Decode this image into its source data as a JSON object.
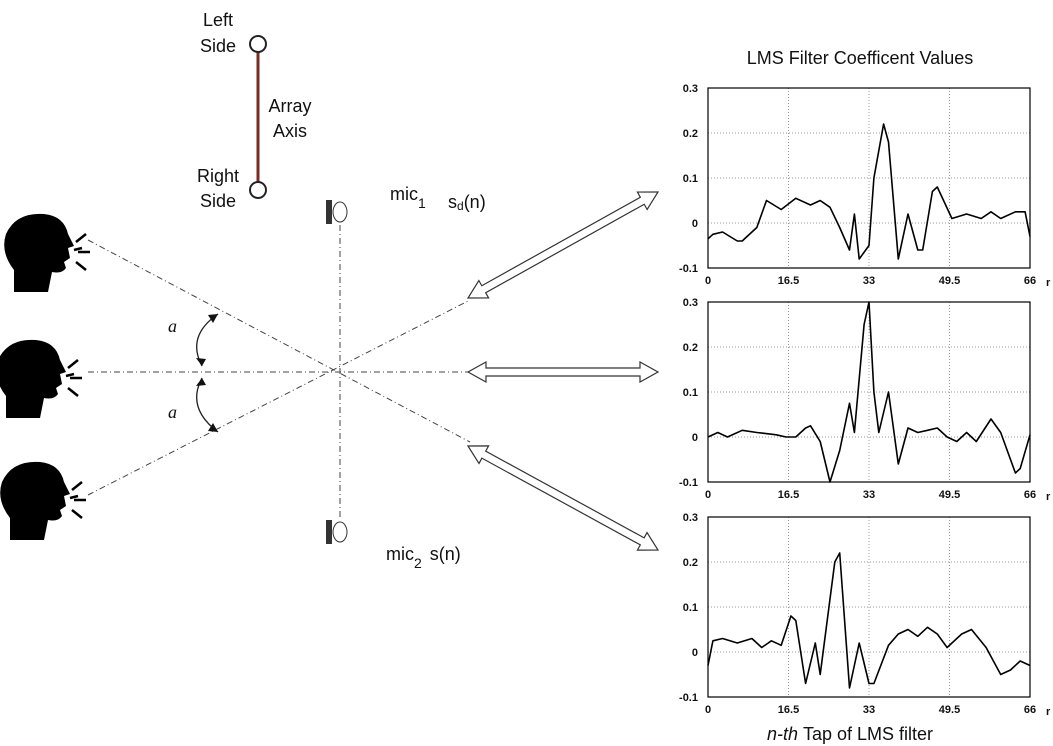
{
  "diagram": {
    "left_side": [
      "Left",
      "Side"
    ],
    "right_side": [
      "Right",
      "Side"
    ],
    "array_axis": [
      "Array",
      "Axis"
    ],
    "mic1": {
      "label": "mic",
      "index": "1",
      "signal": "s",
      "signal_subscript": "d",
      "signal_arg": "(n)"
    },
    "mic2": {
      "label": "mic",
      "index": "2",
      "signal": "s(n)"
    },
    "angle_top": "a",
    "angle_bottom": "a",
    "title": "LMS Filter Coefficent Values",
    "x_label_italic": "n-th",
    "x_label_rest": "Tap of LMS filter"
  },
  "chart_data": [
    {
      "type": "line",
      "x_label": "r",
      "color": "#000000",
      "grid": true,
      "x": [
        0,
        1,
        3,
        6,
        7,
        10,
        12,
        15,
        18,
        21,
        23,
        25,
        27,
        29,
        30,
        31,
        33,
        34,
        36,
        37,
        39,
        41,
        43,
        44,
        46,
        47,
        50,
        53,
        56,
        58,
        60,
        63,
        65,
        66
      ],
      "values": [
        -0.035,
        -0.025,
        -0.02,
        -0.04,
        -0.04,
        -0.01,
        0.05,
        0.03,
        0.055,
        0.04,
        0.05,
        0.035,
        -0.01,
        -0.06,
        0.02,
        -0.08,
        -0.05,
        0.1,
        0.22,
        0.18,
        -0.08,
        0.02,
        -0.06,
        -0.06,
        0.07,
        0.08,
        0.01,
        0.02,
        0.01,
        0.025,
        0.01,
        0.025,
        0.025,
        -0.03
      ],
      "xlim": [
        0,
        66
      ],
      "ylim": [
        -0.1,
        0.3
      ],
      "xticks": [
        0,
        16.5,
        33,
        49.5,
        66
      ],
      "yticks": [
        -0.1,
        0,
        0.1,
        0.2,
        0.3
      ]
    },
    {
      "type": "line",
      "x_label": "r",
      "color": "#000000",
      "grid": true,
      "x": [
        0,
        2,
        4,
        7,
        10,
        14,
        16,
        18,
        20,
        21,
        23,
        25,
        27,
        29,
        30,
        32,
        33,
        34,
        35,
        37,
        39,
        41,
        43,
        45,
        47,
        49,
        51,
        53,
        55,
        58,
        60,
        63,
        64,
        66
      ],
      "values": [
        0,
        0.01,
        0,
        0.015,
        0.01,
        0.005,
        0,
        0,
        0.02,
        0.025,
        -0.01,
        -0.1,
        -0.03,
        0.075,
        0.01,
        0.25,
        0.3,
        0.1,
        0.01,
        0.1,
        -0.06,
        0.02,
        0.01,
        0.015,
        0.02,
        0,
        -0.01,
        0.01,
        -0.01,
        0.04,
        0.01,
        -0.08,
        -0.07,
        0.005
      ],
      "xlim": [
        0,
        66
      ],
      "ylim": [
        -0.1,
        0.3
      ],
      "xticks": [
        0,
        16.5,
        33,
        49.5,
        66
      ],
      "yticks": [
        -0.1,
        0,
        0.1,
        0.2,
        0.3
      ]
    },
    {
      "type": "line",
      "x_label": "r",
      "color": "#000000",
      "grid": true,
      "x": [
        0,
        1,
        3,
        6,
        9,
        11,
        13,
        15,
        17,
        18,
        20,
        22,
        23,
        26,
        27,
        29,
        31,
        33,
        34,
        37,
        39,
        41,
        43,
        45,
        47,
        49,
        52,
        54,
        57,
        60,
        62,
        64,
        66
      ],
      "values": [
        -0.03,
        0.025,
        0.03,
        0.02,
        0.03,
        0.01,
        0.025,
        0.015,
        0.08,
        0.07,
        -0.07,
        0.02,
        -0.05,
        0.2,
        0.22,
        -0.08,
        0.02,
        -0.07,
        -0.07,
        0.015,
        0.04,
        0.05,
        0.035,
        0.055,
        0.04,
        0.01,
        0.04,
        0.05,
        0.01,
        -0.05,
        -0.04,
        -0.02,
        -0.03
      ],
      "xlim": [
        0,
        66
      ],
      "ylim": [
        -0.1,
        0.3
      ],
      "xticks": [
        0,
        16.5,
        33,
        49.5,
        66
      ],
      "yticks": [
        -0.1,
        0,
        0.1,
        0.2,
        0.3
      ]
    }
  ]
}
